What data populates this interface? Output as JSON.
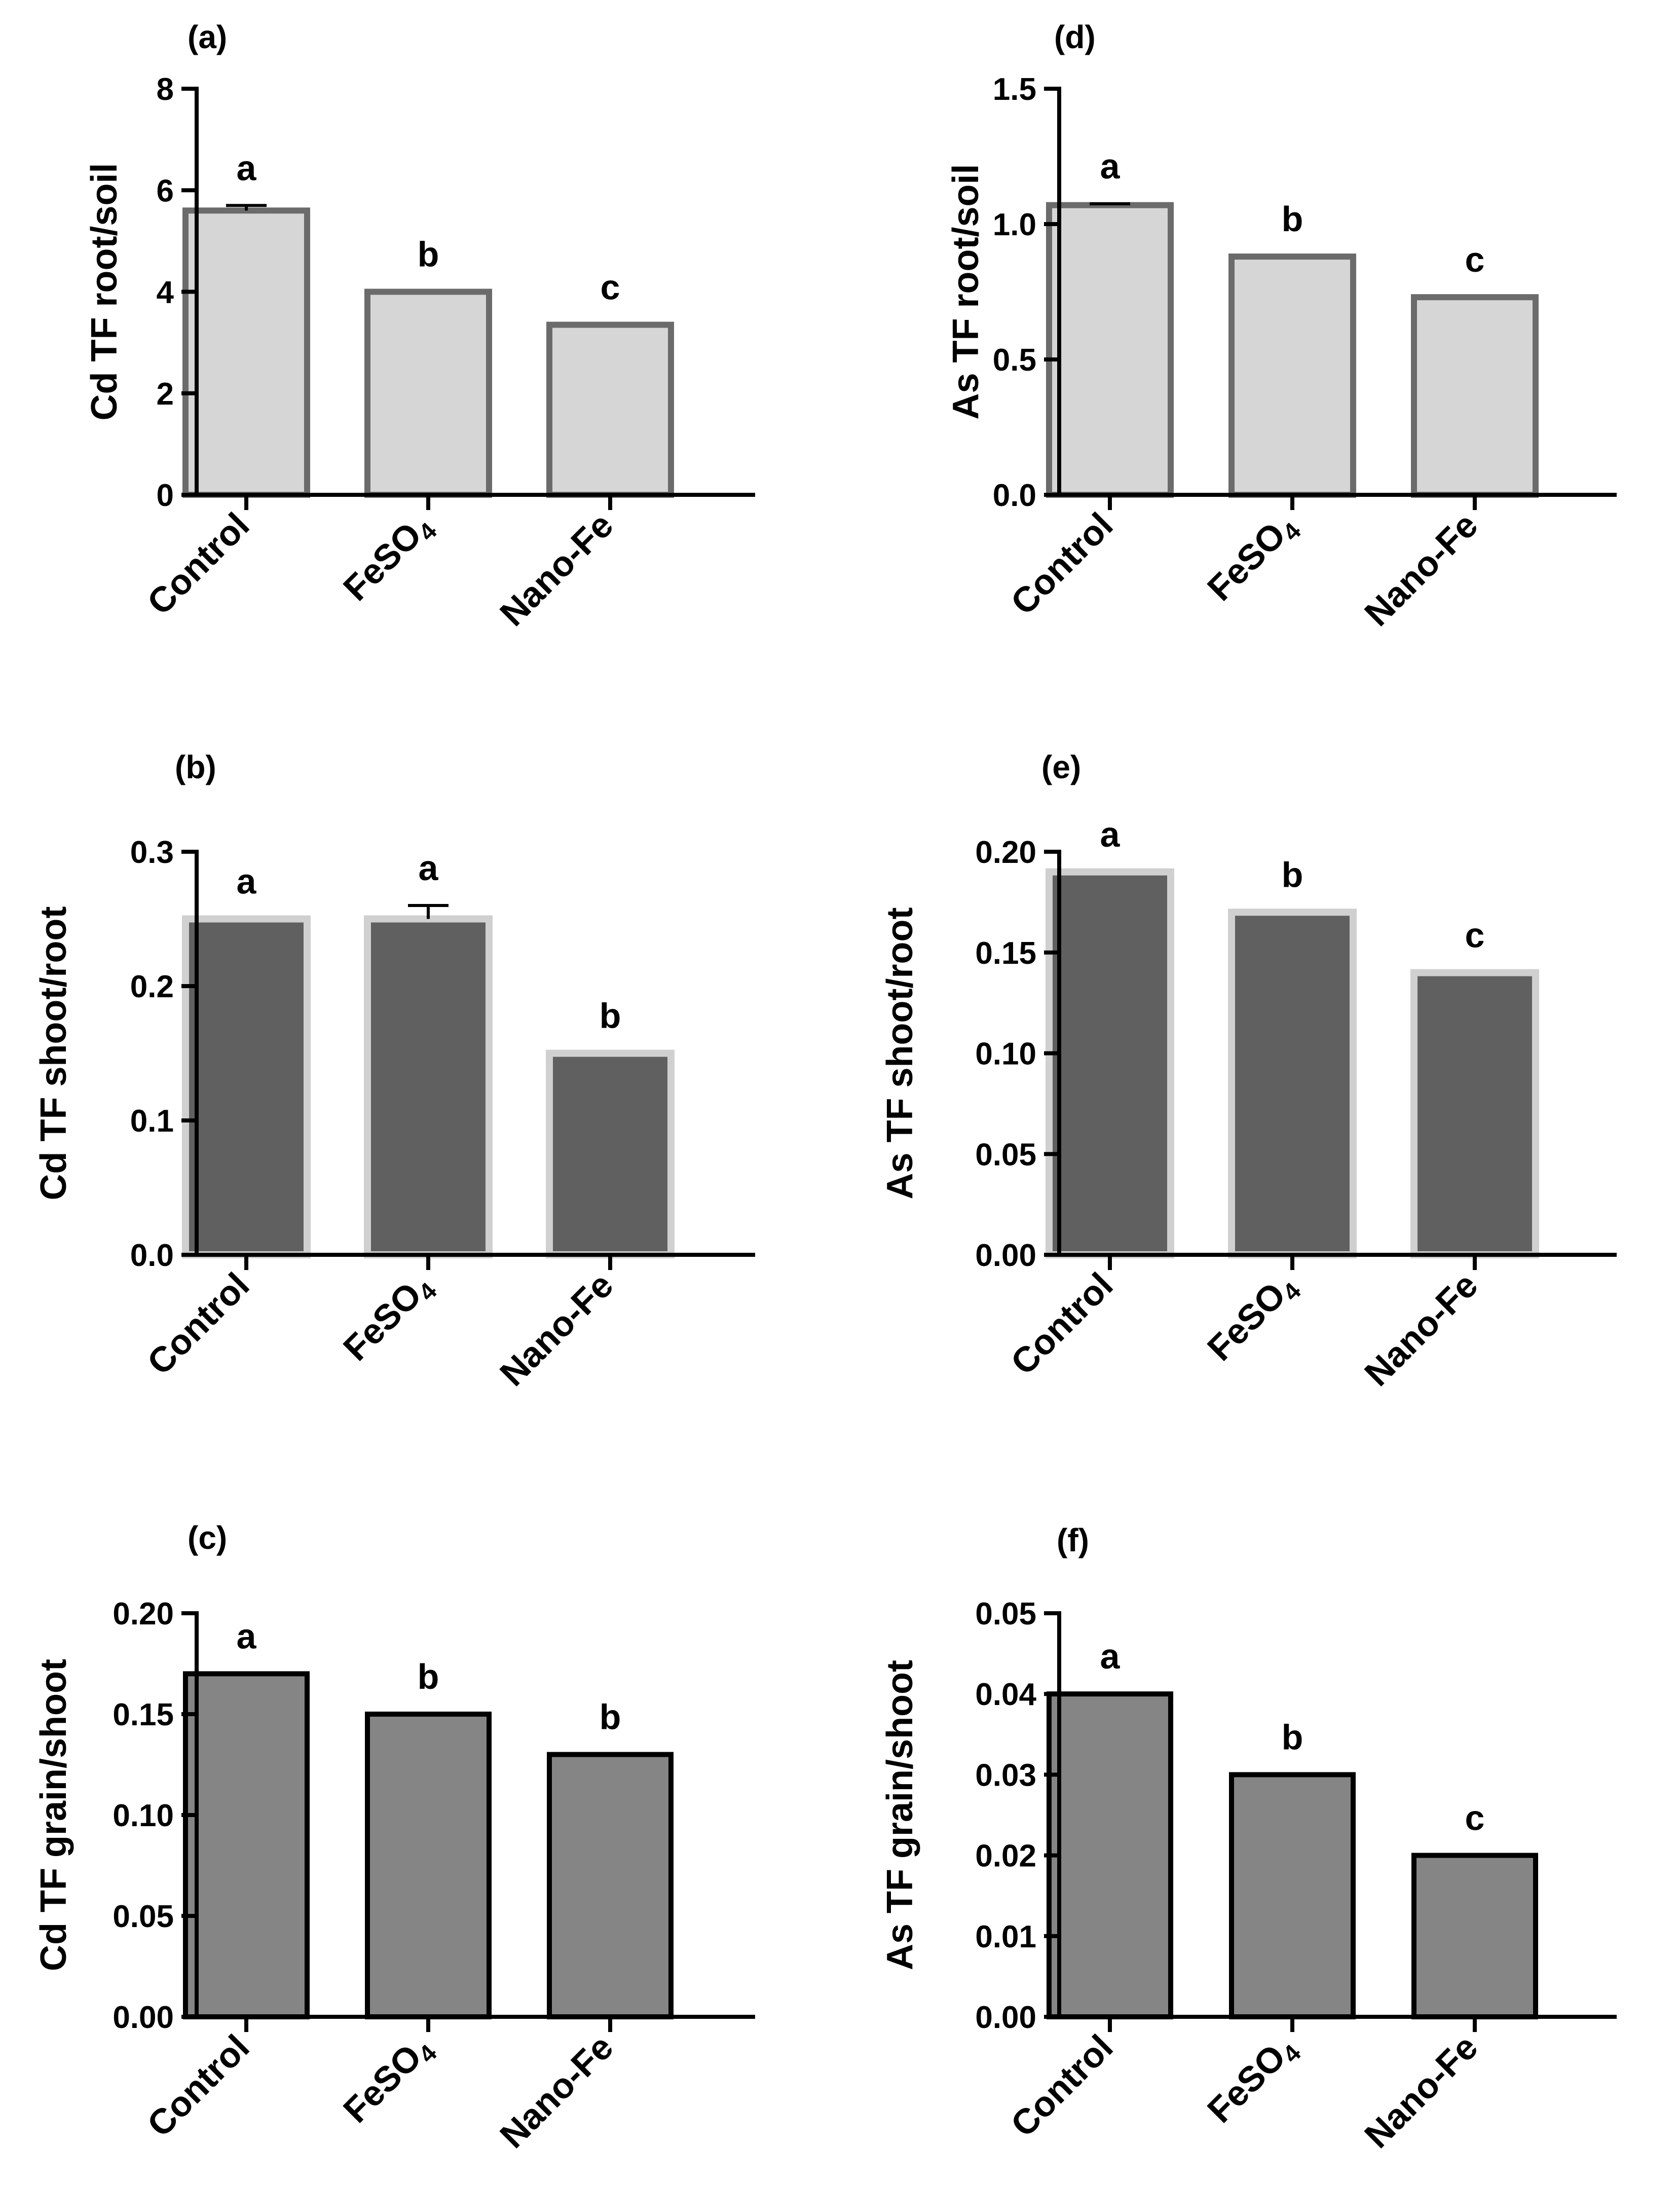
{
  "colors": {
    "light_gray_fill": "#d6d6d6",
    "light_gray_edge": "#6b6b6b",
    "dark_gray_fill": "#606060",
    "dark_gray_edge": "#d0d0d0",
    "mid_gray_fill": "#858585",
    "black_edge": "#000000"
  },
  "chart_data": [
    {
      "id": "a",
      "panel_label": "(a)",
      "type": "bar",
      "categories": [
        "Control",
        "FeSO4",
        "Nano-Fe"
      ],
      "values": [
        5.6,
        4.0,
        3.35
      ],
      "errors": [
        0.1,
        0.0,
        0.0
      ],
      "significance": [
        "a",
        "b",
        "c"
      ],
      "ylabel": "Cd TF root/soil",
      "ylim": [
        0,
        8
      ],
      "yticks": [
        0,
        2,
        4,
        6,
        8
      ],
      "tick_labels": [
        "0",
        "2",
        "4",
        "6",
        "8"
      ],
      "style": "light"
    },
    {
      "id": "b",
      "panel_label": "(b)",
      "type": "bar",
      "categories": [
        "Control",
        "FeSO4",
        "Nano-Fe"
      ],
      "values": [
        0.25,
        0.25,
        0.15
      ],
      "errors": [
        0.0,
        0.01,
        0.0
      ],
      "significance": [
        "a",
        "a",
        "b"
      ],
      "ylabel": "Cd TF shoot/root",
      "ylim": [
        0,
        0.3
      ],
      "yticks": [
        0,
        0.1,
        0.2,
        0.3
      ],
      "tick_labels": [
        "0.0",
        "0.1",
        "0.2",
        "0.3"
      ],
      "style": "dark"
    },
    {
      "id": "c",
      "panel_label": "(c)",
      "type": "bar",
      "categories": [
        "Control",
        "FeSO4",
        "Nano-Fe"
      ],
      "values": [
        0.17,
        0.15,
        0.13
      ],
      "errors": [
        0,
        0,
        0
      ],
      "significance": [
        "a",
        "b",
        "b"
      ],
      "ylabel": "Cd TF grain/shoot",
      "ylim": [
        0,
        0.2
      ],
      "yticks": [
        0,
        0.05,
        0.1,
        0.15,
        0.2
      ],
      "tick_labels": [
        "0.00",
        "0.05",
        "0.10",
        "0.15",
        "0.20"
      ],
      "style": "mid"
    },
    {
      "id": "d",
      "panel_label": "(d)",
      "type": "bar",
      "categories": [
        "Control",
        "FeSO4",
        "Nano-Fe"
      ],
      "values": [
        1.07,
        0.88,
        0.73
      ],
      "errors": [
        0.005,
        0,
        0
      ],
      "significance": [
        "a",
        "b",
        "c"
      ],
      "ylabel": "As TF root/soil",
      "ylim": [
        0,
        1.5
      ],
      "yticks": [
        0,
        0.5,
        1.0,
        1.5
      ],
      "tick_labels": [
        "0.0",
        "0.5",
        "1.0",
        "1.5"
      ],
      "style": "light"
    },
    {
      "id": "e",
      "panel_label": "(e)",
      "type": "bar",
      "categories": [
        "Control",
        "FeSO4",
        "Nano-Fe"
      ],
      "values": [
        0.19,
        0.17,
        0.14
      ],
      "errors": [
        0,
        0,
        0
      ],
      "significance": [
        "a",
        "b",
        "c"
      ],
      "ylabel": "As TF shoot/root",
      "ylim": [
        0,
        0.2
      ],
      "yticks": [
        0,
        0.05,
        0.1,
        0.15,
        0.2
      ],
      "tick_labels": [
        "0.00",
        "0.05",
        "0.10",
        "0.15",
        "0.20"
      ],
      "style": "dark"
    },
    {
      "id": "f",
      "panel_label": "(f)",
      "type": "bar",
      "categories": [
        "Control",
        "FeSO4",
        "Nano-Fe"
      ],
      "values": [
        0.04,
        0.03,
        0.02
      ],
      "errors": [
        0,
        0,
        0
      ],
      "significance": [
        "a",
        "b",
        "c"
      ],
      "ylabel": "As TF grain/shoot",
      "ylim": [
        0,
        0.05
      ],
      "yticks": [
        0,
        0.01,
        0.02,
        0.03,
        0.04,
        0.05
      ],
      "tick_labels": [
        "0.00",
        "0.01",
        "0.02",
        "0.03",
        "0.04",
        "0.05"
      ],
      "style": "mid"
    }
  ]
}
